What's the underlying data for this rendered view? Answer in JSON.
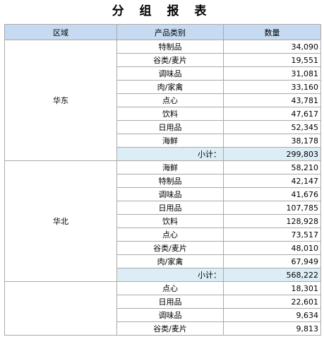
{
  "title": "分 组 报 表",
  "header": {
    "region": "区域",
    "category": "产品类别",
    "quantity": "数量"
  },
  "groups": [
    {
      "region": "华东",
      "rows": [
        {
          "category": "特制品",
          "quantity": "34,090"
        },
        {
          "category": "谷类/麦片",
          "quantity": "19,551"
        },
        {
          "category": "调味品",
          "quantity": "31,081"
        },
        {
          "category": "肉/家禽",
          "quantity": "33,160"
        },
        {
          "category": "点心",
          "quantity": "43,781"
        },
        {
          "category": "饮料",
          "quantity": "47,617"
        },
        {
          "category": "日用品",
          "quantity": "52,345"
        },
        {
          "category": "海鲜",
          "quantity": "38,178"
        }
      ],
      "subtotal_label": "小计：",
      "subtotal": "299,803"
    },
    {
      "region": "华北",
      "rows": [
        {
          "category": "海鲜",
          "quantity": "58,210"
        },
        {
          "category": "特制品",
          "quantity": "42,147"
        },
        {
          "category": "调味品",
          "quantity": "41,676"
        },
        {
          "category": "日用品",
          "quantity": "107,785"
        },
        {
          "category": "饮料",
          "quantity": "128,928"
        },
        {
          "category": "点心",
          "quantity": "73,517"
        },
        {
          "category": "谷类/麦片",
          "quantity": "48,010"
        },
        {
          "category": "肉/家禽",
          "quantity": "67,949"
        }
      ],
      "subtotal_label": "小计：",
      "subtotal": "568,222"
    },
    {
      "region": "",
      "rows": [
        {
          "category": "点心",
          "quantity": "18,301"
        },
        {
          "category": "日用品",
          "quantity": "22,601"
        },
        {
          "category": "调味品",
          "quantity": "9,634"
        },
        {
          "category": "谷类/麦片",
          "quantity": "9,813"
        }
      ]
    }
  ]
}
